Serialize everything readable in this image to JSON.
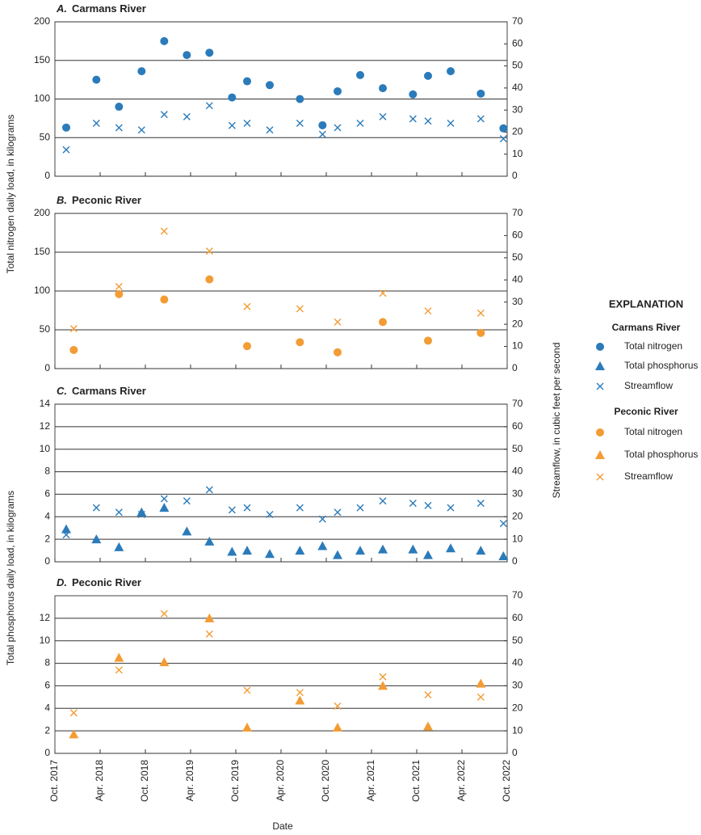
{
  "x_axis": {
    "xlim": [
      "2017-10",
      "2022-10"
    ],
    "xticks": [
      {
        "value": "2017-10",
        "label": "Oct. 2017"
      },
      {
        "value": "2018-04",
        "label": "Apr. 2018"
      },
      {
        "value": "2018-10",
        "label": "Oct. 2018"
      },
      {
        "value": "2019-04",
        "label": "Apr. 2019"
      },
      {
        "value": "2019-10",
        "label": "Oct. 2019"
      },
      {
        "value": "2020-04",
        "label": "Apr. 2020"
      },
      {
        "value": "2020-10",
        "label": "Oct. 2020"
      },
      {
        "value": "2021-04",
        "label": "Apr. 2021"
      },
      {
        "value": "2021-10",
        "label": "Oct. 2021"
      },
      {
        "value": "2022-04",
        "label": "Apr. 2022"
      },
      {
        "value": "2022-10",
        "label": "Oct. 2022"
      }
    ],
    "label": "Date"
  },
  "y_label_nitrogen": "Total nitrogen daily load, in kilograms",
  "y_label_phosphorus": "Total phosphorus daily load, in kilograms",
  "y2_label": "Streamflow, in cubic feet per second",
  "legend_title": "EXPLANATION",
  "chart_data": [
    {
      "type": "scatter",
      "panel": "A.",
      "title": "Carmans River",
      "ylim": [
        0,
        200
      ],
      "yticks": [
        0,
        50,
        100,
        150,
        200
      ],
      "y2lim": [
        0,
        70
      ],
      "y2ticks": [
        0,
        10,
        20,
        30,
        40,
        50,
        60,
        70
      ],
      "grid": true,
      "x": [
        "2017-11",
        "2018-03",
        "2018-06",
        "2018-09",
        "2018-12",
        "2019-03",
        "2019-06",
        "2019-09",
        "2019-11",
        "2020-02",
        "2020-06",
        "2020-09",
        "2020-11",
        "2021-02",
        "2021-05",
        "2021-09",
        "2021-11",
        "2022-02",
        "2022-06",
        "2022-09"
      ],
      "series": [
        {
          "name": "Total nitrogen",
          "marker": "circle",
          "color": "#2b7bba",
          "values": [
            63,
            125,
            90,
            136,
            175,
            157,
            160,
            102,
            123,
            118,
            100,
            66,
            110,
            131,
            114,
            106,
            130,
            136,
            107,
            62
          ]
        },
        {
          "name": "Streamflow",
          "marker": "x",
          "color": "#2b7bba",
          "axis": "y2",
          "values": [
            12,
            24,
            22,
            21,
            28,
            27,
            32,
            23,
            24,
            21,
            24,
            19,
            22,
            24,
            27,
            26,
            25,
            24,
            26,
            17
          ]
        }
      ]
    },
    {
      "type": "scatter",
      "panel": "B.",
      "title": "Peconic River",
      "ylim": [
        0,
        200
      ],
      "yticks": [
        0,
        50,
        100,
        150,
        200
      ],
      "y2lim": [
        0,
        70
      ],
      "y2ticks": [
        0,
        10,
        20,
        30,
        40,
        50,
        60,
        70
      ],
      "grid": true,
      "x": [
        "2017-12",
        "2018-06",
        "2018-12",
        "2019-06",
        "2019-11",
        "2020-06",
        "2020-11",
        "2021-05",
        "2021-11",
        "2022-06"
      ],
      "series": [
        {
          "name": "Total nitrogen",
          "marker": "circle",
          "color": "#f39c34",
          "values": [
            24,
            96,
            89,
            115,
            29,
            34,
            21,
            60,
            36,
            46
          ]
        },
        {
          "name": "Streamflow",
          "marker": "x",
          "color": "#f39c34",
          "axis": "y2",
          "values": [
            18,
            37,
            62,
            53,
            28,
            27,
            21,
            34,
            26,
            25
          ]
        }
      ]
    },
    {
      "type": "scatter",
      "panel": "C.",
      "title": "Carmans River",
      "ylim": [
        0,
        14
      ],
      "yticks": [
        0,
        2,
        4,
        6,
        8,
        10,
        12,
        14
      ],
      "y2lim": [
        0,
        70
      ],
      "y2ticks": [
        0,
        10,
        20,
        30,
        40,
        50,
        60,
        70
      ],
      "grid": true,
      "x": [
        "2017-11",
        "2018-03",
        "2018-06",
        "2018-09",
        "2018-12",
        "2019-03",
        "2019-06",
        "2019-09",
        "2019-11",
        "2020-02",
        "2020-06",
        "2020-09",
        "2020-11",
        "2021-02",
        "2021-05",
        "2021-09",
        "2021-11",
        "2022-02",
        "2022-06",
        "2022-09"
      ],
      "series": [
        {
          "name": "Total phosphorus",
          "marker": "triangle",
          "color": "#2b7bba",
          "values": [
            2.9,
            2.0,
            1.3,
            4.4,
            4.8,
            2.7,
            1.8,
            0.9,
            1.0,
            0.7,
            1.0,
            1.4,
            0.6,
            1.0,
            1.1,
            1.1,
            0.6,
            1.2,
            1.0,
            0.5
          ]
        },
        {
          "name": "Streamflow",
          "marker": "x",
          "color": "#2b7bba",
          "axis": "y2",
          "values": [
            12,
            24,
            22,
            21,
            28,
            27,
            32,
            23,
            24,
            21,
            24,
            19,
            22,
            24,
            27,
            26,
            25,
            24,
            26,
            17
          ]
        }
      ]
    },
    {
      "type": "scatter",
      "panel": "D.",
      "title": "Peconic River",
      "ylim": [
        0,
        14
      ],
      "yticks": [
        0,
        2,
        4,
        6,
        8,
        10,
        12
      ],
      "y2lim": [
        0,
        70
      ],
      "y2ticks": [
        0,
        10,
        20,
        30,
        40,
        50,
        60,
        70
      ],
      "grid": true,
      "x": [
        "2017-12",
        "2018-06",
        "2018-12",
        "2019-06",
        "2019-11",
        "2020-06",
        "2020-11",
        "2021-05",
        "2021-11",
        "2022-06"
      ],
      "series": [
        {
          "name": "Total phosphorus",
          "marker": "triangle",
          "color": "#f39c34",
          "values": [
            1.7,
            8.5,
            8.1,
            12.0,
            2.3,
            4.7,
            2.3,
            6.0,
            2.4,
            6.2
          ]
        },
        {
          "name": "Streamflow",
          "marker": "x",
          "color": "#f39c34",
          "axis": "y2",
          "values": [
            18,
            37,
            62,
            53,
            28,
            27,
            21,
            34,
            26,
            25
          ]
        }
      ]
    }
  ]
}
